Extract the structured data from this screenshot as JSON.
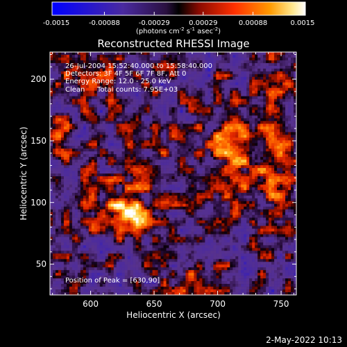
{
  "chart_data": {
    "type": "heatmap",
    "title": "Reconstructed RHESSI Image",
    "xlabel": "Heliocentric X (arcsec)",
    "ylabel": "Heliocentric Y (arcsec)",
    "xlim": [
      568,
      762
    ],
    "ylim": [
      25,
      222
    ],
    "x_ticks": [
      600,
      650,
      700,
      750
    ],
    "y_ticks": [
      50,
      100,
      150,
      200
    ],
    "colorbar": {
      "ticks": [
        "-0.0015",
        "-0.00088",
        "-0.00029",
        "0.00029",
        "0.00088",
        "0.0015"
      ],
      "tick_values": [
        -0.0015,
        -0.00088,
        -0.00029,
        0.00029,
        0.00088,
        0.0015
      ],
      "unit_base": "(photons cm",
      "unit_exp1": "-2",
      "unit_mid": " s",
      "unit_exp2": "-1",
      "unit_mid2": " asec",
      "unit_exp3": "-2",
      "unit_end": ")",
      "colors": [
        "#0000ff",
        "#3b1aa6",
        "#50307a",
        "#000000",
        "#a01000",
        "#ff3000",
        "#ff9000",
        "#ffe080",
        "#ffffff"
      ]
    },
    "info_lines": [
      "26-Jul-2004 15:52:40.000 to 15:58:40.000",
      "Detectors: 3F 4F 5F 6F 7F 8F, Att 0",
      "Energy Range: 12.0 - 25.0 keV"
    ],
    "info_clean": "Clean",
    "info_counts": "Total counts: 7.95E+03",
    "peak_label": "Position of Peak = [630,90]",
    "peak": [
      630,
      90
    ],
    "sources": [
      {
        "x": 630,
        "y": 90,
        "amp": 0.0015,
        "sx": 9,
        "sy": 8
      },
      {
        "x": 622,
        "y": 98,
        "amp": 0.0006,
        "sx": 22,
        "sy": 18
      },
      {
        "x": 714,
        "y": 148,
        "amp": 0.00095,
        "sx": 16,
        "sy": 20
      },
      {
        "x": 742,
        "y": 120,
        "amp": 0.0007,
        "sx": 11,
        "sy": 22
      },
      {
        "x": 705,
        "y": 95,
        "amp": 0.0005,
        "sx": 12,
        "sy": 12
      },
      {
        "x": 745,
        "y": 197,
        "amp": 0.0006,
        "sx": 12,
        "sy": 14
      },
      {
        "x": 600,
        "y": 205,
        "amp": 0.0005,
        "sx": 22,
        "sy": 12
      },
      {
        "x": 578,
        "y": 155,
        "amp": 0.0006,
        "sx": 8,
        "sy": 14
      },
      {
        "x": 658,
        "y": 140,
        "amp": 0.0004,
        "sx": 10,
        "sy": 10
      },
      {
        "x": 680,
        "y": 35,
        "amp": 0.0005,
        "sx": 16,
        "sy": 10
      }
    ],
    "footer_timestamp": "2-May-2022 10:13"
  }
}
